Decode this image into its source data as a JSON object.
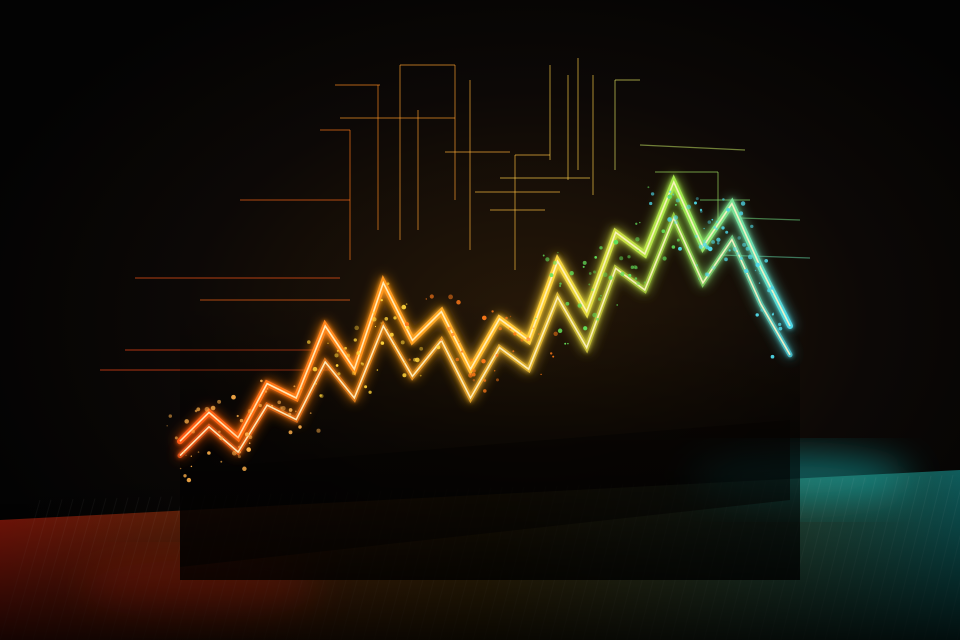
{
  "scene": {
    "type": "abstract-glowing-line-chart-illustration",
    "colors": {
      "background": "#050505",
      "floor_red": "#ff2a10",
      "floor_cyan": "#19c8c8",
      "line_orange": "#ff7a18",
      "line_yellow": "#ffd23a",
      "line_green": "#63e05a",
      "line_cyan": "#4fd8e8",
      "spark": "#ffb04a"
    }
  },
  "chart_data": {
    "type": "line",
    "title": "",
    "xlabel": "",
    "ylabel": "",
    "grid": false,
    "legend": "none",
    "ylim": [
      0,
      100
    ],
    "series": [
      {
        "x": [
          0,
          1,
          2,
          3,
          4,
          5,
          6,
          7,
          8,
          9,
          10,
          11,
          12,
          13,
          14,
          15,
          16,
          17,
          18,
          19,
          20,
          21
        ],
        "values": [
          8,
          16,
          9,
          24,
          20,
          40,
          28,
          52,
          36,
          44,
          28,
          42,
          36,
          58,
          44,
          66,
          60,
          80,
          62,
          74,
          56,
          40
        ]
      },
      {
        "x": [
          0,
          1,
          2,
          3,
          4,
          5,
          6,
          7,
          8,
          9,
          10,
          11,
          12,
          13,
          14,
          15,
          16,
          17,
          18,
          19,
          20,
          21
        ],
        "values": [
          4,
          12,
          5,
          18,
          14,
          30,
          20,
          40,
          26,
          36,
          20,
          34,
          28,
          48,
          34,
          56,
          50,
          70,
          52,
          64,
          46,
          32
        ]
      }
    ]
  }
}
